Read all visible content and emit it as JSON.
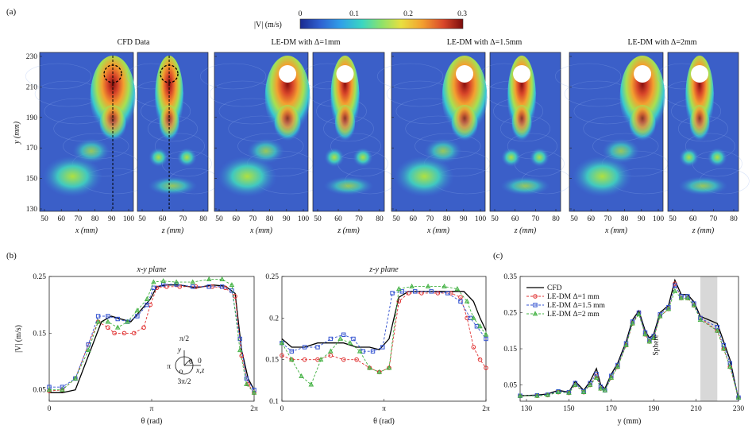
{
  "panel_labels": {
    "a": "(a)",
    "b": "(b)",
    "c": "(c)"
  },
  "colorbar": {
    "label": "|V| (m/s)",
    "ticks": [
      "0",
      "0.1",
      "0.2",
      "0.3"
    ],
    "colors": [
      "#1a2a8f",
      "#2f5fd0",
      "#30a0e8",
      "#3ad6c2",
      "#8de26a",
      "#e8e040",
      "#f3a030",
      "#d9472a",
      "#7a0c0c"
    ]
  },
  "fields": {
    "titles": [
      "CFD Data",
      "LE-DM with Δ=1mm",
      "LE-DM with Δ=1.5mm",
      "LE-DM with Δ=2mm"
    ],
    "ylabel": "y (mm)",
    "yticks": [
      "130",
      "150",
      "170",
      "190",
      "210",
      "230"
    ],
    "x_ticks": [
      "50",
      "60",
      "70",
      "80",
      "90",
      "100"
    ],
    "z_ticks": [
      "50",
      "60",
      "70",
      "80"
    ],
    "x_label": "x (mm)",
    "z_label": "z (mm)"
  },
  "chart_data": [
    {
      "type": "line",
      "title": "x-y plane",
      "xlabel": "θ (rad)",
      "ylabel": "|V| (m/s)",
      "ylim": [
        0.03,
        0.25
      ],
      "xlim": [
        0,
        6.283
      ],
      "xticks": [
        "0",
        "π",
        "2π"
      ],
      "yticks": [
        "0.05",
        "0.15",
        "0.25"
      ],
      "series": [
        {
          "name": "CFD",
          "color": "#000000",
          "marker": "none",
          "x": [
            0,
            0.4,
            0.8,
            1.2,
            1.6,
            1.9,
            2.2,
            2.5,
            2.8,
            3.1,
            3.3,
            3.6,
            4.0,
            4.5,
            5.0,
            5.4,
            5.7,
            5.9,
            6.1,
            6.283
          ],
          "y": [
            0.045,
            0.045,
            0.05,
            0.11,
            0.17,
            0.18,
            0.175,
            0.17,
            0.19,
            0.21,
            0.232,
            0.235,
            0.235,
            0.23,
            0.235,
            0.233,
            0.22,
            0.12,
            0.07,
            0.05
          ]
        },
        {
          "name": "LE-DM Δ=1 mm",
          "color": "#e03030",
          "marker": "circle",
          "x": [
            0,
            0.4,
            0.8,
            1.2,
            1.5,
            1.8,
            2.0,
            2.3,
            2.6,
            2.9,
            3.1,
            3.3,
            3.6,
            4.0,
            4.5,
            5.0,
            5.4,
            5.7,
            5.9,
            6.1,
            6.283
          ],
          "y": [
            0.048,
            0.05,
            0.07,
            0.13,
            0.17,
            0.16,
            0.15,
            0.15,
            0.15,
            0.16,
            0.2,
            0.23,
            0.232,
            0.232,
            0.232,
            0.232,
            0.23,
            0.215,
            0.11,
            0.06,
            0.045
          ]
        },
        {
          "name": "LE-DM Δ=1.5 mm",
          "color": "#3050d0",
          "marker": "square",
          "x": [
            0,
            0.4,
            0.8,
            1.2,
            1.5,
            1.8,
            2.1,
            2.4,
            2.7,
            3.0,
            3.2,
            3.5,
            3.9,
            4.4,
            4.9,
            5.3,
            5.6,
            5.85,
            6.05,
            6.283
          ],
          "y": [
            0.055,
            0.055,
            0.07,
            0.13,
            0.18,
            0.18,
            0.175,
            0.17,
            0.18,
            0.2,
            0.23,
            0.236,
            0.236,
            0.232,
            0.232,
            0.232,
            0.225,
            0.14,
            0.07,
            0.05
          ]
        },
        {
          "name": "LE-DM Δ=2 mm",
          "color": "#40b040",
          "marker": "triangle",
          "x": [
            0,
            0.4,
            0.8,
            1.2,
            1.5,
            1.8,
            2.1,
            2.4,
            2.7,
            3.0,
            3.2,
            3.5,
            3.9,
            4.4,
            4.9,
            5.3,
            5.6,
            5.85,
            6.05,
            6.283
          ],
          "y": [
            0.05,
            0.05,
            0.07,
            0.12,
            0.17,
            0.17,
            0.16,
            0.17,
            0.19,
            0.21,
            0.24,
            0.242,
            0.24,
            0.24,
            0.245,
            0.245,
            0.235,
            0.12,
            0.06,
            0.045
          ]
        }
      ],
      "inset": {
        "labels": [
          "π/2",
          "y",
          "π",
          "θ",
          "0",
          "x,z",
          "o",
          "3π/2"
        ]
      }
    },
    {
      "type": "line",
      "title": "z-y plane",
      "xlabel": "θ (rad)",
      "ylabel": "",
      "ylim": [
        0.1,
        0.25
      ],
      "xlim": [
        0,
        6.283
      ],
      "xticks": [
        "0",
        "π",
        "2π"
      ],
      "yticks": [
        "0.1",
        "0.15",
        "0.2",
        "0.25"
      ],
      "series": [
        {
          "name": "CFD",
          "color": "#000000",
          "marker": "none",
          "x": [
            0,
            0.3,
            0.7,
            1.1,
            1.5,
            1.9,
            2.3,
            2.7,
            3.0,
            3.3,
            3.6,
            3.9,
            4.3,
            4.8,
            5.2,
            5.6,
            5.9,
            6.1,
            6.283
          ],
          "y": [
            0.175,
            0.165,
            0.165,
            0.17,
            0.17,
            0.17,
            0.165,
            0.165,
            0.162,
            0.175,
            0.225,
            0.232,
            0.232,
            0.232,
            0.232,
            0.232,
            0.22,
            0.2,
            0.185
          ]
        },
        {
          "name": "LE-DM Δ=1 mm",
          "color": "#e03030",
          "marker": "circle",
          "x": [
            0,
            0.3,
            0.7,
            1.1,
            1.5,
            1.9,
            2.3,
            2.7,
            3.0,
            3.3,
            3.6,
            3.9,
            4.3,
            4.8,
            5.2,
            5.5,
            5.7,
            5.9,
            6.1,
            6.283
          ],
          "y": [
            0.155,
            0.15,
            0.15,
            0.15,
            0.155,
            0.15,
            0.15,
            0.14,
            0.135,
            0.14,
            0.22,
            0.23,
            0.23,
            0.23,
            0.23,
            0.225,
            0.2,
            0.165,
            0.15,
            0.14
          ]
        },
        {
          "name": "LE-DM Δ=1.5 mm",
          "color": "#3050d0",
          "marker": "square",
          "x": [
            0,
            0.3,
            0.7,
            1.1,
            1.5,
            1.9,
            2.2,
            2.5,
            2.8,
            3.1,
            3.4,
            3.7,
            4.1,
            4.6,
            5.1,
            5.5,
            5.8,
            6.0,
            6.283
          ],
          "y": [
            0.17,
            0.16,
            0.165,
            0.165,
            0.175,
            0.18,
            0.175,
            0.16,
            0.16,
            0.165,
            0.23,
            0.232,
            0.232,
            0.232,
            0.23,
            0.22,
            0.2,
            0.19,
            0.175
          ]
        },
        {
          "name": "LE-DM Δ=2 mm",
          "color": "#40b040",
          "marker": "triangle",
          "x": [
            0,
            0.3,
            0.6,
            0.9,
            1.2,
            1.5,
            1.8,
            2.1,
            2.4,
            2.7,
            3.0,
            3.3,
            3.6,
            4.0,
            4.5,
            5.0,
            5.4,
            5.7,
            5.9,
            6.1,
            6.283
          ],
          "y": [
            0.17,
            0.15,
            0.13,
            0.12,
            0.15,
            0.16,
            0.175,
            0.17,
            0.16,
            0.14,
            0.135,
            0.14,
            0.235,
            0.238,
            0.238,
            0.238,
            0.235,
            0.22,
            0.2,
            0.19,
            0.18
          ]
        }
      ]
    },
    {
      "type": "line",
      "title": "",
      "xlabel": "y (mm)",
      "ylabel": "",
      "ylim": [
        0.005,
        0.35
      ],
      "xlim": [
        127,
        230
      ],
      "xticks": [
        "130",
        "150",
        "170",
        "190",
        "210",
        "230"
      ],
      "yticks": [
        "0.05",
        "0.15",
        "0.25",
        "0.35"
      ],
      "shaded_region": [
        212,
        220
      ],
      "annotation": "Sphere",
      "series": [
        {
          "name": "CFD",
          "color": "#000000",
          "marker": "none",
          "x": [
            127,
            135,
            140,
            145,
            150,
            153,
            157,
            160,
            163,
            165,
            167,
            170,
            173,
            177,
            180,
            183,
            186,
            188,
            190,
            193,
            197,
            200,
            203,
            206,
            209,
            212,
            220,
            223,
            226,
            230
          ],
          "y": [
            0.02,
            0.022,
            0.025,
            0.035,
            0.03,
            0.06,
            0.035,
            0.06,
            0.095,
            0.05,
            0.04,
            0.08,
            0.11,
            0.17,
            0.23,
            0.255,
            0.2,
            0.18,
            0.19,
            0.25,
            0.27,
            0.34,
            0.3,
            0.3,
            0.28,
            0.24,
            0.22,
            0.17,
            0.12,
            0.01
          ]
        },
        {
          "name": "LE-DM Δ=1 mm",
          "color": "#e03030",
          "marker": "circle",
          "x": [
            127,
            135,
            140,
            145,
            150,
            153,
            157,
            160,
            163,
            165,
            167,
            170,
            173,
            177,
            180,
            183,
            186,
            188,
            190,
            193,
            197,
            200,
            203,
            206,
            209,
            212,
            220,
            223,
            226,
            230
          ],
          "y": [
            0.02,
            0.02,
            0.022,
            0.03,
            0.028,
            0.05,
            0.03,
            0.05,
            0.075,
            0.04,
            0.035,
            0.07,
            0.1,
            0.16,
            0.22,
            0.25,
            0.19,
            0.17,
            0.18,
            0.24,
            0.26,
            0.33,
            0.29,
            0.29,
            0.27,
            0.235,
            0.2,
            0.15,
            0.1,
            0.015
          ]
        },
        {
          "name": "LE-DM Δ=1.5 mm",
          "color": "#3050d0",
          "marker": "square",
          "x": [
            127,
            135,
            140,
            145,
            150,
            153,
            157,
            160,
            163,
            165,
            167,
            170,
            173,
            177,
            180,
            183,
            186,
            188,
            190,
            193,
            197,
            200,
            203,
            206,
            209,
            212,
            220,
            223,
            226,
            230
          ],
          "y": [
            0.02,
            0.021,
            0.023,
            0.032,
            0.03,
            0.055,
            0.032,
            0.055,
            0.08,
            0.045,
            0.035,
            0.075,
            0.105,
            0.165,
            0.225,
            0.25,
            0.195,
            0.175,
            0.185,
            0.245,
            0.265,
            0.325,
            0.295,
            0.295,
            0.275,
            0.235,
            0.21,
            0.16,
            0.11,
            0.015
          ]
        },
        {
          "name": "LE-DM Δ=2 mm",
          "color": "#40b040",
          "marker": "triangle",
          "x": [
            127,
            135,
            140,
            145,
            150,
            153,
            157,
            160,
            163,
            165,
            167,
            170,
            173,
            177,
            180,
            183,
            186,
            188,
            190,
            193,
            197,
            200,
            203,
            206,
            209,
            212,
            220,
            223,
            226,
            230
          ],
          "y": [
            0.02,
            0.02,
            0.022,
            0.03,
            0.028,
            0.05,
            0.03,
            0.05,
            0.07,
            0.04,
            0.035,
            0.07,
            0.1,
            0.16,
            0.22,
            0.245,
            0.19,
            0.17,
            0.18,
            0.24,
            0.26,
            0.31,
            0.29,
            0.29,
            0.27,
            0.23,
            0.2,
            0.15,
            0.1,
            0.015
          ]
        }
      ]
    }
  ]
}
